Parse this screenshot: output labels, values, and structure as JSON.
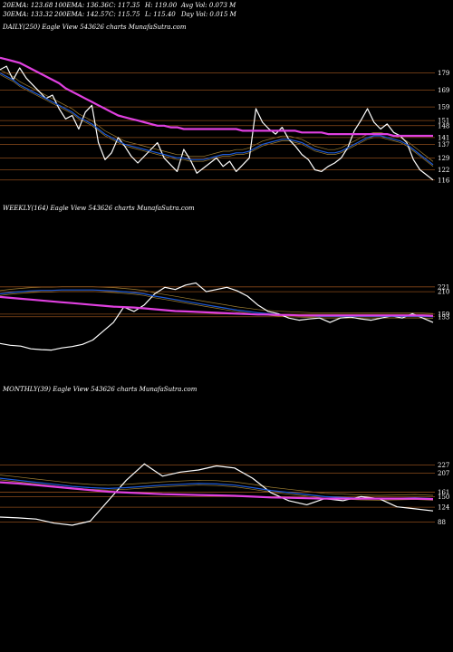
{
  "header": {
    "row1": [
      "20EMA: 123.68",
      "100EMA: 136.36",
      "C: 117.35",
      "H: 119.00",
      "Avg Vol: 0.073 M"
    ],
    "row2": [
      "30EMA: 133.32",
      "200EMA: 142.57",
      "C: 115.75",
      "L: 115.40",
      "Day Vol: 0.015 M"
    ]
  },
  "colors": {
    "background": "#000000",
    "price": "#ffffff",
    "ema_short": "#1e5bd8",
    "ema_long": "#e040e0",
    "ema_mid": "#c8a040",
    "grid": "#8a4a1a"
  },
  "chart_data": [
    {
      "type": "line",
      "title": "DAILY(250) Eagle  View  543626  charts MunafaSutra.com",
      "price_labels": [
        "179",
        "169",
        "159",
        "151",
        "148",
        "141",
        "137",
        "129",
        "122",
        "116"
      ],
      "series": [
        {
          "values": [
            181,
            183,
            175,
            182,
            176,
            172,
            168,
            164,
            166,
            158,
            152,
            154,
            146,
            156,
            160,
            138,
            128,
            132,
            141,
            136,
            130,
            126,
            130,
            134,
            138,
            129,
            125,
            121,
            134,
            128,
            120,
            123,
            126,
            129,
            124,
            127,
            121,
            125,
            129,
            158,
            150,
            146,
            143,
            147,
            140,
            136,
            131,
            128,
            122,
            121,
            124,
            126,
            129,
            135,
            145,
            151,
            158,
            150,
            146,
            149,
            144,
            142,
            138,
            128,
            122,
            119,
            116
          ]
        },
        {
          "values": [
            179,
            177,
            175,
            172,
            170,
            168,
            166,
            164,
            162,
            160,
            158,
            156,
            153,
            151,
            149,
            146,
            143,
            141,
            139,
            137,
            136,
            135,
            134,
            133,
            132,
            131,
            130,
            129,
            129,
            128,
            128,
            128,
            129,
            130,
            131,
            131,
            132,
            132,
            133,
            135,
            137,
            138,
            139,
            140,
            140,
            139,
            138,
            136,
            134,
            133,
            132,
            132,
            133,
            135,
            137,
            139,
            141,
            142,
            142,
            141,
            140,
            139,
            137,
            134,
            131,
            128,
            125
          ]
        },
        {
          "values": [
            188,
            187,
            186,
            185,
            183,
            181,
            179,
            177,
            175,
            173,
            170,
            168,
            166,
            164,
            162,
            160,
            158,
            156,
            154,
            153,
            152,
            151,
            150,
            149,
            148,
            148,
            147,
            147,
            146,
            146,
            146,
            146,
            146,
            146,
            146,
            146,
            146,
            145,
            145,
            145,
            145,
            145,
            145,
            145,
            145,
            145,
            144,
            144,
            144,
            144,
            143,
            143,
            143,
            143,
            143,
            143,
            143,
            143,
            143,
            143,
            142,
            142,
            142,
            142,
            142,
            142,
            142
          ]
        }
      ]
    },
    {
      "type": "line",
      "title": "WEEKLY(164) Eagle  View  543626  charts MunafaSutra.com",
      "price_labels": [
        "221",
        "210",
        "159",
        "153"
      ],
      "series": [
        {
          "values": [
            92,
            88,
            86,
            80,
            78,
            77,
            82,
            85,
            90,
            100,
            120,
            140,
            175,
            165,
            180,
            205,
            220,
            215,
            225,
            230,
            210,
            215,
            220,
            212,
            200,
            180,
            165,
            160,
            150,
            145,
            148,
            150,
            140,
            150,
            152,
            148,
            145,
            150,
            155,
            150,
            160,
            150,
            140
          ]
        },
        {
          "values": [
            205,
            208,
            210,
            212,
            213,
            213,
            214,
            214,
            214,
            214,
            213,
            212,
            210,
            208,
            205,
            200,
            196,
            192,
            188,
            184,
            180,
            176,
            172,
            168,
            165,
            162,
            160,
            158,
            157,
            156,
            155,
            154,
            154,
            154,
            154,
            154,
            154,
            154,
            154,
            154,
            154,
            154,
            153
          ]
        },
        {
          "values": [
            198,
            196,
            194,
            192,
            190,
            188,
            186,
            184,
            182,
            180,
            178,
            176,
            175,
            174,
            172,
            170,
            168,
            166,
            165,
            164,
            163,
            162,
            161,
            160,
            159,
            158,
            158,
            157,
            157,
            156,
            156,
            156,
            156,
            156,
            156,
            156,
            156,
            156,
            156,
            156,
            156,
            156,
            155
          ]
        }
      ]
    },
    {
      "type": "line",
      "title": "MONTHLY(39) Eagle  View  543626  charts MunafaSutra.com",
      "price_labels": [
        "227",
        "207",
        "161",
        "150",
        "124",
        "88"
      ],
      "series": [
        {
          "values": [
            100,
            98,
            95,
            85,
            80,
            90,
            140,
            190,
            230,
            200,
            210,
            215,
            225,
            220,
            195,
            160,
            140,
            130,
            145,
            140,
            150,
            145,
            125,
            120,
            115
          ]
        },
        {
          "values": [
            195,
            190,
            185,
            180,
            175,
            172,
            170,
            172,
            175,
            178,
            180,
            182,
            181,
            178,
            172,
            165,
            160,
            155,
            150,
            148,
            146,
            145,
            146,
            147,
            145
          ]
        },
        {
          "values": [
            185,
            182,
            178,
            174,
            170,
            166,
            162,
            160,
            158,
            156,
            155,
            154,
            153,
            152,
            150,
            148,
            147,
            146,
            145,
            145,
            145,
            145,
            145,
            145,
            144
          ]
        }
      ]
    }
  ]
}
